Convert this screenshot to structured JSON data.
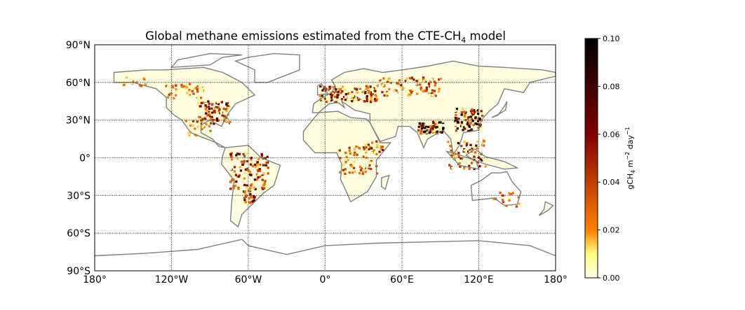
{
  "title": "Global methane emissions estimated from the CTE-CH",
  "title_sub": "4",
  "title_tail": " model",
  "map": {
    "projection": "equirectangular",
    "lon_range": [
      -180,
      180
    ],
    "lat_range": [
      -90,
      90
    ],
    "grid": true,
    "coastline_color": "#808080",
    "lat_ticks": [
      {
        "value": 90,
        "label": "90°N"
      },
      {
        "value": 60,
        "label": "60°N"
      },
      {
        "value": 30,
        "label": "30°N"
      },
      {
        "value": 0,
        "label": "0°"
      },
      {
        "value": -30,
        "label": "30°S"
      },
      {
        "value": -60,
        "label": "60°S"
      },
      {
        "value": -90,
        "label": "90°S"
      }
    ],
    "lon_ticks": [
      {
        "value": -180,
        "label": "180°"
      },
      {
        "value": -120,
        "label": "120°W"
      },
      {
        "value": -60,
        "label": "60°W"
      },
      {
        "value": 0,
        "label": "0°"
      },
      {
        "value": 60,
        "label": "60°E"
      },
      {
        "value": 120,
        "label": "120°E"
      },
      {
        "value": 180,
        "label": "180°"
      }
    ]
  },
  "colorbar": {
    "range": [
      0,
      0.1
    ],
    "ticks": [
      "0.00",
      "0.02",
      "0.04",
      "0.06",
      "0.08",
      "0.10"
    ],
    "label_main": "gCH",
    "label_sub": "4",
    "label_mid": " m",
    "label_sup1": "−2",
    "label_mid2": " day",
    "label_sup2": "−1",
    "colors": [
      "#ffffe8",
      "#ffff80",
      "#ff8000",
      "#c04000",
      "#800000",
      "#400000",
      "#000000"
    ]
  }
}
